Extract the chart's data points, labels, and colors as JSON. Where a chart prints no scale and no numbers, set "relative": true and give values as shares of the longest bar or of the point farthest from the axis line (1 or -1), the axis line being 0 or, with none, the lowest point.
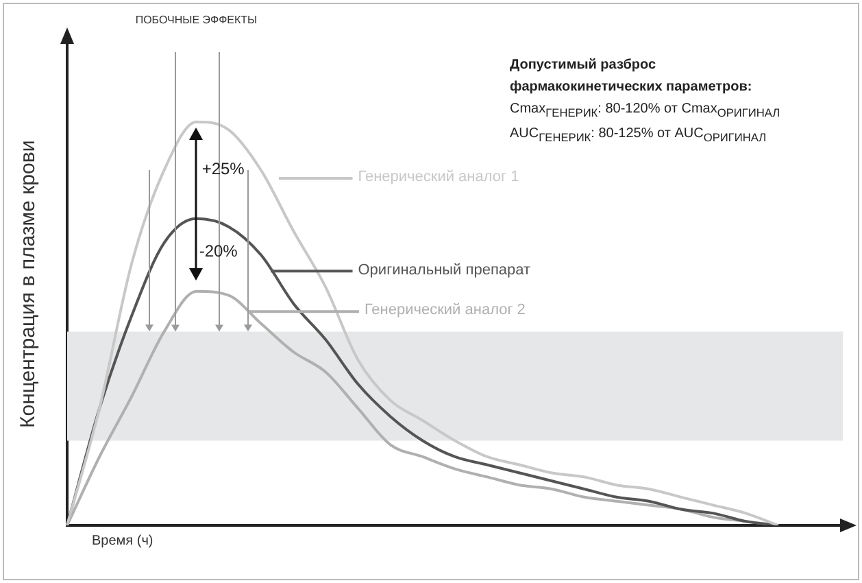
{
  "chart_data": {
    "type": "line",
    "relative": true,
    "ylabel": "Концентрация в плазме крови",
    "xlabel": "Время (ч)",
    "categories": [
      null,
      null,
      null,
      null,
      null,
      null,
      null,
      null,
      null,
      null,
      null,
      null,
      null,
      null,
      null,
      null,
      null,
      null,
      null,
      null,
      null,
      null,
      null,
      null,
      null
    ],
    "series": [
      {
        "name": "Генерический аналог 1",
        "color": "#c8c8c8",
        "values": [
          0,
          0.29,
          0.65,
          0.88,
          1.0,
          0.98,
          0.88,
          0.73,
          0.59,
          0.41,
          0.31,
          0.26,
          0.21,
          0.17,
          0.15,
          0.13,
          0.12,
          0.1,
          0.09,
          0.07,
          0.05,
          0.03,
          0,
          null,
          null
        ]
      },
      {
        "name": "Оригинальный препарат",
        "color": "#555555",
        "values": [
          0,
          0.29,
          0.52,
          0.7,
          0.76,
          0.74,
          0.67,
          0.55,
          0.46,
          0.35,
          0.27,
          0.21,
          0.17,
          0.15,
          0.13,
          0.11,
          0.09,
          0.07,
          0.06,
          0.04,
          0.03,
          0.01,
          0,
          null,
          null
        ]
      },
      {
        "name": "Генерический аналог 2",
        "color": "#b0b0b0",
        "values": [
          0,
          0.17,
          0.32,
          0.48,
          0.58,
          0.57,
          0.5,
          0.43,
          0.38,
          0.29,
          0.2,
          0.17,
          0.14,
          0.12,
          0.1,
          0.09,
          0.07,
          0.06,
          0.05,
          0.04,
          0.02,
          0.01,
          0,
          null,
          null
        ]
      }
    ],
    "bands": [
      {
        "axis": "y",
        "from": 0.21,
        "to": 0.48,
        "color": "#e6e7e8"
      }
    ],
    "annotations": [
      "ПОБОЧНЫЕ ЭФФЕКТЫ",
      "+25%",
      "-20%",
      "Допустимый разброс фармакокинетических параметров:",
      "Cmax$_{ГЕНЕРИК}$: 80-120% от Cmax$_{ОРИГИНАЛ}$",
      "AUC$_{ГЕНЕРИК}$: 80-125% от AUC$_{ОРИГИНАЛ}$"
    ],
    "grid": false,
    "marker": "none",
    "tick_labels": false
  }
}
